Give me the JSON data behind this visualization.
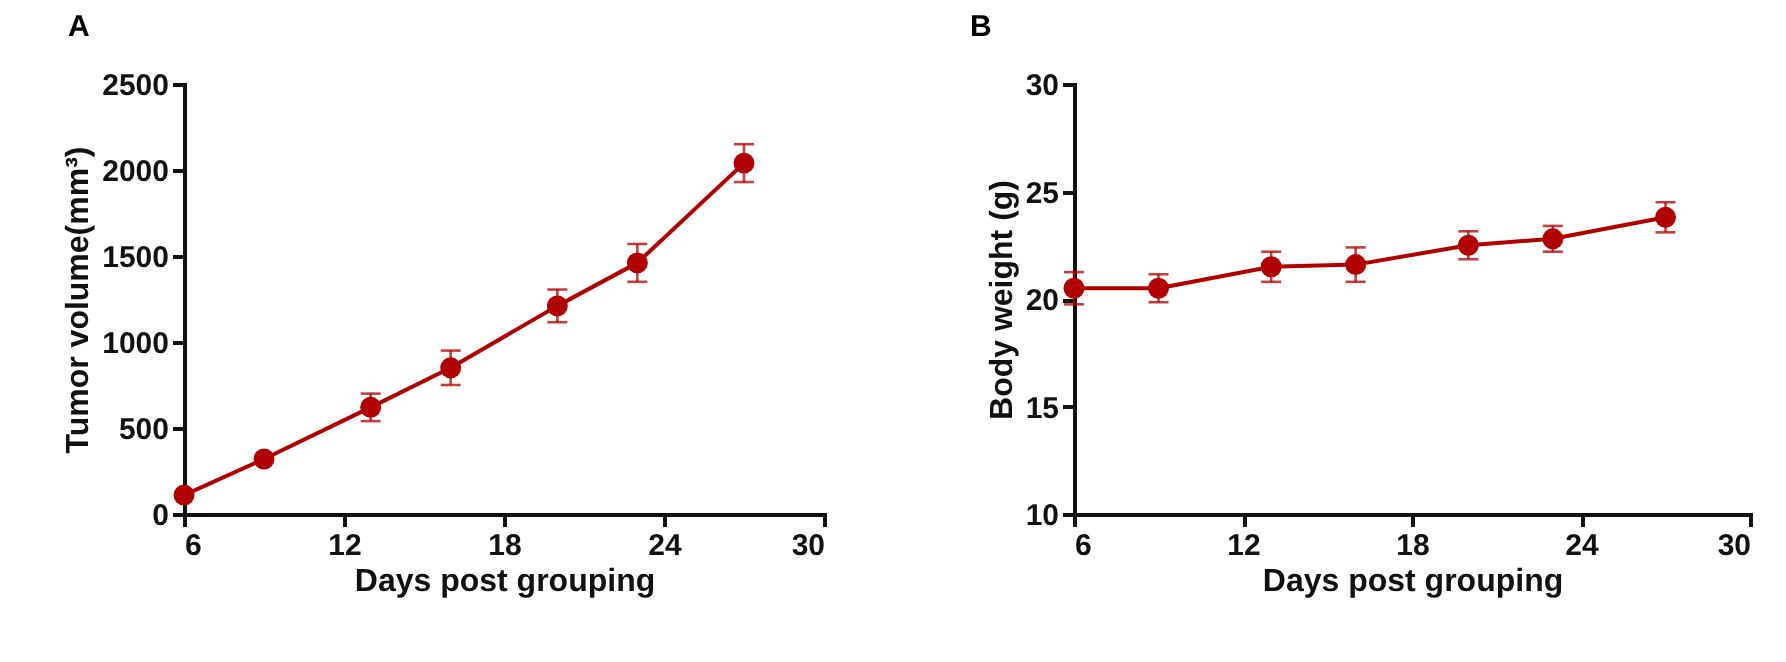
{
  "chart_data": [
    {
      "type": "line",
      "title": "A",
      "xlabel": "Days post grouping",
      "ylabel": "Tumor volume(mm³)",
      "x": [
        6,
        9,
        13,
        16,
        20,
        23,
        27
      ],
      "xlim": [
        6,
        30
      ],
      "xticks": [
        6,
        12,
        18,
        24,
        30
      ],
      "ylim": [
        0,
        2500
      ],
      "yticks": [
        0,
        500,
        1000,
        1500,
        2000,
        2500
      ],
      "grid": false,
      "marker": "circle",
      "line_style": "solid",
      "series": [
        {
          "color": "#b00000",
          "values": [
            110,
            320,
            620,
            850,
            1210,
            1460,
            2040
          ],
          "errors": [
            null,
            null,
            80,
            100,
            95,
            110,
            110
          ]
        }
      ]
    },
    {
      "type": "line",
      "title": "B",
      "xlabel": "Days post grouping",
      "ylabel": "Body weight (g)",
      "x": [
        6,
        9,
        13,
        16,
        20,
        23,
        27
      ],
      "xlim": [
        6,
        30
      ],
      "xticks": [
        6,
        12,
        18,
        24,
        30
      ],
      "ylim": [
        10,
        30
      ],
      "yticks": [
        10,
        15,
        20,
        25,
        30
      ],
      "grid": false,
      "marker": "circle",
      "line_style": "solid",
      "series": [
        {
          "color": "#b00000",
          "values": [
            20.5,
            20.5,
            21.5,
            21.6,
            22.5,
            22.8,
            23.8
          ],
          "errors": [
            0.75,
            0.65,
            0.7,
            0.8,
            0.65,
            0.6,
            0.7
          ]
        }
      ]
    }
  ]
}
